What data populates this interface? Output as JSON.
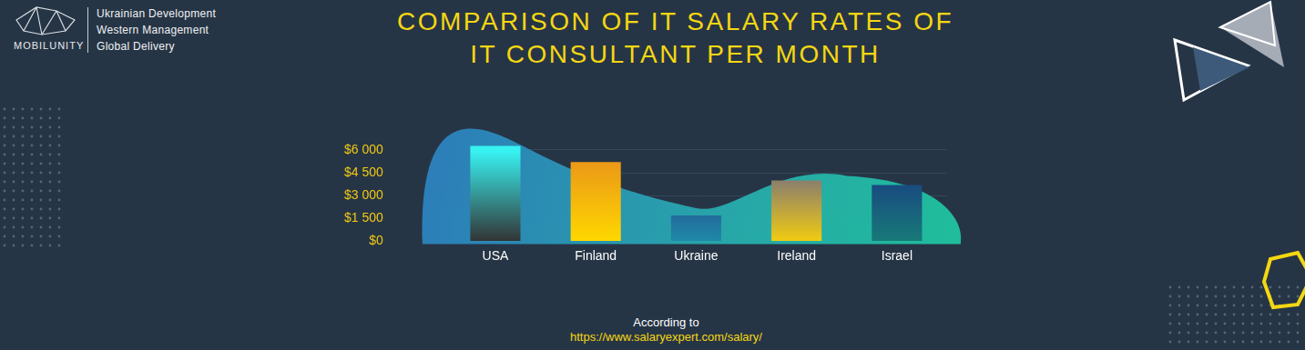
{
  "logo": {
    "name": "MOBILUNITY",
    "lines": [
      "Ukrainian Development",
      "Western Management",
      "Global Delivery"
    ]
  },
  "chart_data": {
    "type": "bar",
    "title": [
      "COMPARISON OF IT SALARY RATES OF",
      "IT CONSULTANT PER MONTH"
    ],
    "categories": [
      "USA",
      "Finland",
      "Ukraine",
      "Ireland",
      "Israel"
    ],
    "values": [
      6250,
      5200,
      1700,
      4000,
      3700
    ],
    "colors": [
      "#38f2f2",
      "#e8901a",
      "#2a1f7a",
      "#5a5a9a",
      "#1a2f85"
    ],
    "ylim": [
      0,
      6500
    ],
    "yticks": [
      {
        "value": 0,
        "label": "$0"
      },
      {
        "value": 1500,
        "label": "$1 500"
      },
      {
        "value": 3000,
        "label": "$3 000"
      },
      {
        "value": 4500,
        "label": "$4 500"
      },
      {
        "value": 6000,
        "label": "$6 000"
      }
    ],
    "grid": true,
    "source": [
      "According to",
      "https://www.salaryexpert.com/salary/"
    ]
  }
}
